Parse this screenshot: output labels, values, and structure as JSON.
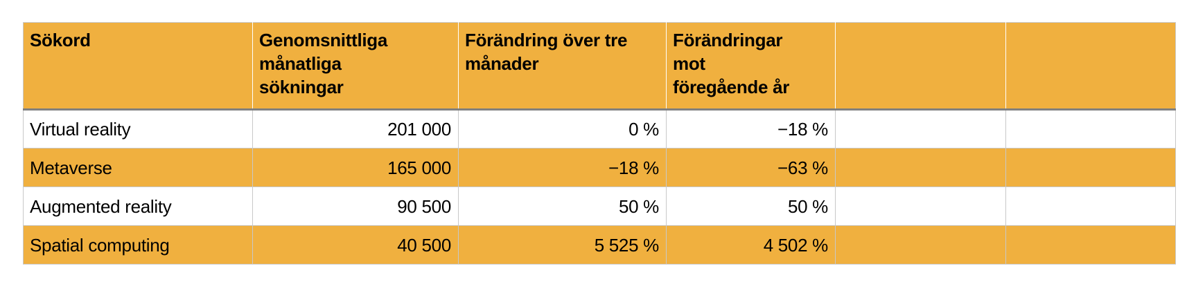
{
  "table": {
    "header_color": "#F0B03F",
    "columns": [
      "Sökord",
      "Genomsnittliga\nmånatliga\nsökningar",
      "Förändring över tre\nmånader",
      "Förändringar\nmot\nföregående år",
      "",
      ""
    ],
    "rows": [
      [
        "Virtual reality",
        "201 000",
        "0 %",
        "−18 %",
        "",
        ""
      ],
      [
        "Metaverse",
        "165 000",
        "−18 %",
        "−63 %",
        "",
        ""
      ],
      [
        "Augmented reality",
        "90 500",
        "50 %",
        "50 %",
        "",
        ""
      ],
      [
        "Spatial computing",
        "40 500",
        "5 525 %",
        "4 502 %",
        "",
        ""
      ]
    ]
  }
}
